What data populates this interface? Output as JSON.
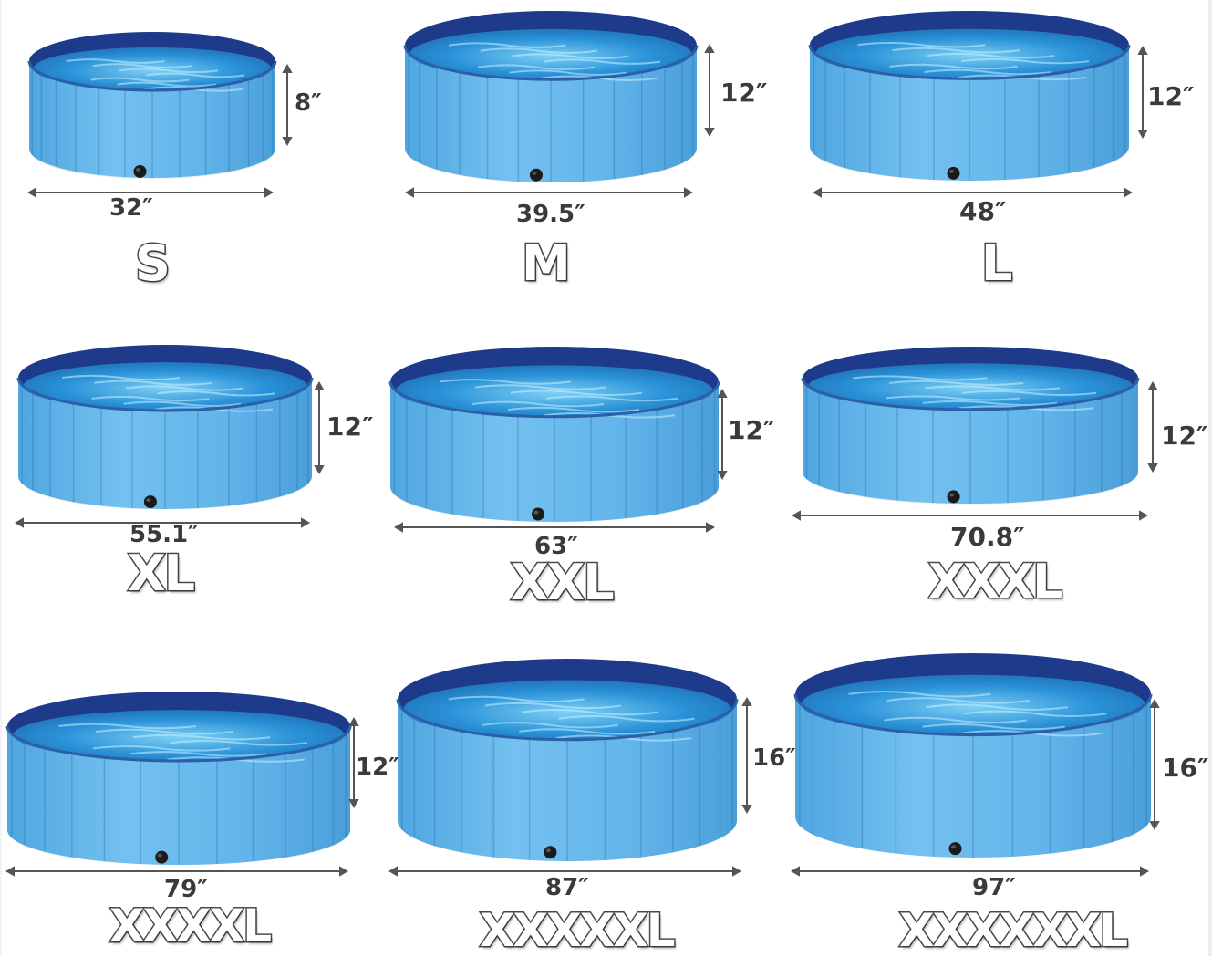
{
  "pools": [
    {
      "size": "S",
      "diameter": "32″",
      "height": "8″"
    },
    {
      "size": "M",
      "diameter": "39.5″",
      "height": "12″"
    },
    {
      "size": "L",
      "diameter": "48″",
      "height": "12″"
    },
    {
      "size": "XL",
      "diameter": "55.1″",
      "height": "12″"
    },
    {
      "size": "XXL",
      "diameter": "63″",
      "height": "12″"
    },
    {
      "size": "XXXL",
      "diameter": "70.8″",
      "height": "12″"
    },
    {
      "size": "XXXXL",
      "diameter": "79″",
      "height": "12″"
    },
    {
      "size": "XXXXXL",
      "diameter": "87″",
      "height": "16″"
    },
    {
      "size": "XXXXXXL",
      "diameter": "97″",
      "height": "16″"
    }
  ],
  "colors": {
    "pool_wall": "#62b4ea",
    "pool_wall_panel": "#74c1f0",
    "pool_rim": "#1e3a8a",
    "water": "#2a92d8",
    "water_light": "#7ed0f5",
    "drain_plug": "#1a1a1a",
    "dimension_line": "#555555",
    "label_outline": "#4a4a4a"
  }
}
